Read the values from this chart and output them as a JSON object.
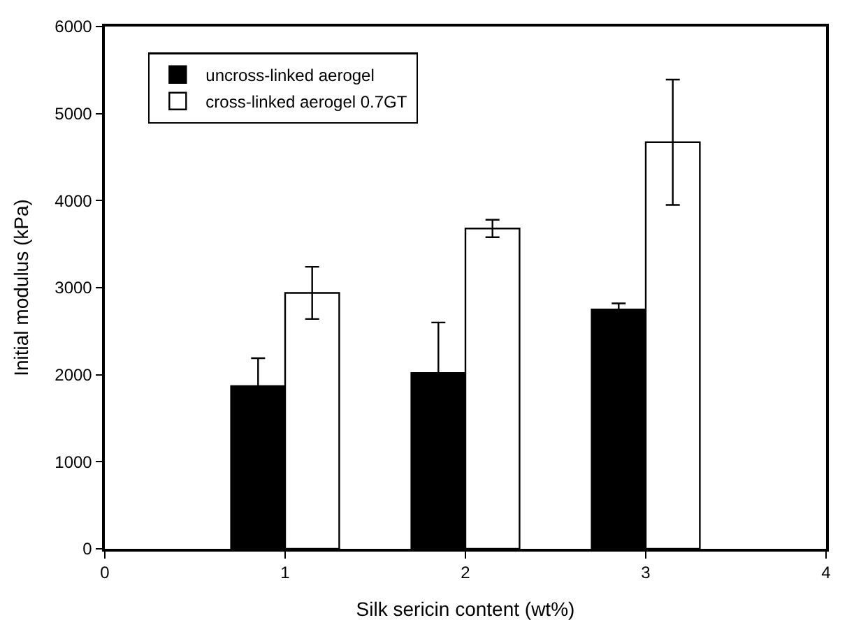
{
  "chart_data": {
    "type": "bar",
    "xlabel": "Silk sericin content (wt%)",
    "ylabel": "Initial modulus (kPa)",
    "x": [
      1,
      2,
      3
    ],
    "series": [
      {
        "name": "uncross-linked aerogel",
        "color": "#000000",
        "values": [
          1870,
          2020,
          2750
        ],
        "errors": [
          320,
          580,
          70
        ]
      },
      {
        "name": "cross-linked aerogel 0.7GT",
        "color": "#ffffff",
        "values": [
          2940,
          3680,
          4670
        ],
        "errors": [
          300,
          100,
          720
        ]
      }
    ],
    "xlim": [
      0,
      4
    ],
    "xticks": [
      0,
      1,
      2,
      3,
      4
    ],
    "ylim": [
      0,
      6000
    ],
    "yticks": [
      0,
      1000,
      2000,
      3000,
      4000,
      5000,
      6000
    ],
    "legend": "top left"
  }
}
